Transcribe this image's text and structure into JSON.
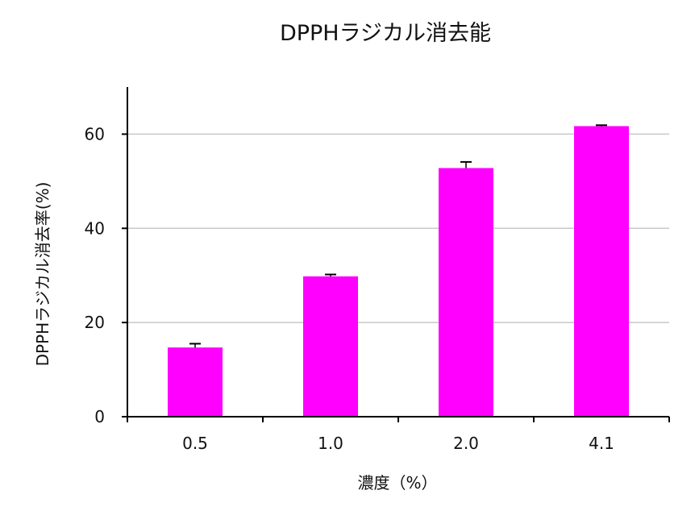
{
  "chart_data": {
    "type": "bar",
    "title": "DPPHラジカル消去能",
    "xlabel": "濃度（%）",
    "ylabel": "DPPHラジカル消去率(%)",
    "categories": [
      "0.5",
      "1.0",
      "2.0",
      "4.1"
    ],
    "values": [
      14.7,
      29.8,
      52.8,
      61.7
    ],
    "errors": [
      0.8,
      0.4,
      1.3,
      0.2
    ],
    "ylim": [
      0,
      70
    ],
    "yticks": [
      0,
      20,
      40,
      60
    ],
    "ytick_labels": [
      "0",
      "20",
      "40",
      "60"
    ],
    "grid": true,
    "colors": {
      "bar": "#FF00FF",
      "grid": "#C8C8C8",
      "axis": "#000000"
    }
  }
}
